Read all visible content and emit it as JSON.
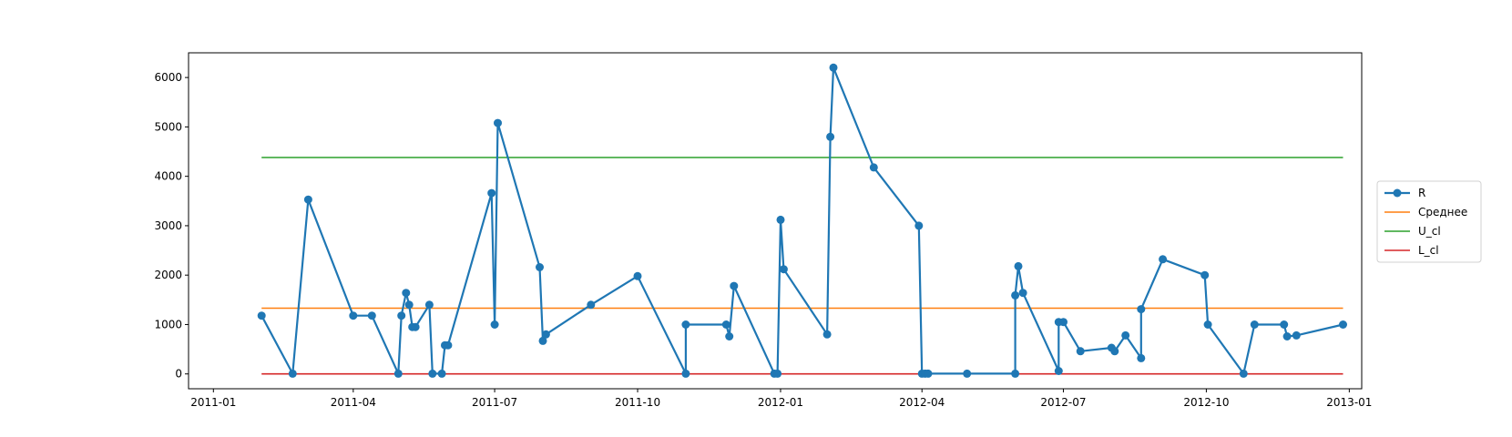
{
  "chart_data": {
    "type": "line",
    "title": "",
    "xlabel": "",
    "ylabel": "",
    "x_ticks": [
      "2011-01",
      "2011-04",
      "2011-07",
      "2011-10",
      "2012-01",
      "2012-04",
      "2012-07",
      "2012-10",
      "2013-01"
    ],
    "y_ticks": [
      "0",
      "1000",
      "2000",
      "3000",
      "4000",
      "5000",
      "6000"
    ],
    "xlim": [
      "2010-12-16",
      "2013-01-09"
    ],
    "ylim": [
      -300,
      6500
    ],
    "grid": false,
    "legend_placement": "right-center, outside plot",
    "series": [
      {
        "name": "R",
        "color": "#1f77b4",
        "marker": "circle",
        "points": [
          [
            "2011-02-01",
            1180
          ],
          [
            "2011-02-21",
            5
          ],
          [
            "2011-03-03",
            3530
          ],
          [
            "2011-04-01",
            1180
          ],
          [
            "2011-04-13",
            1180
          ],
          [
            "2011-04-30",
            5
          ],
          [
            "2011-05-02",
            1180
          ],
          [
            "2011-05-05",
            1640
          ],
          [
            "2011-05-07",
            1400
          ],
          [
            "2011-05-09",
            950
          ],
          [
            "2011-05-11",
            950
          ],
          [
            "2011-05-20",
            1400
          ],
          [
            "2011-05-22",
            5
          ],
          [
            "2011-05-28",
            5
          ],
          [
            "2011-05-30",
            580
          ],
          [
            "2011-06-01",
            580
          ],
          [
            "2011-06-29",
            3660
          ],
          [
            "2011-07-01",
            1000
          ],
          [
            "2011-07-03",
            5080
          ],
          [
            "2011-07-30",
            2160
          ],
          [
            "2011-08-01",
            670
          ],
          [
            "2011-08-03",
            800
          ],
          [
            "2011-09-01",
            1400
          ],
          [
            "2011-10-01",
            1980
          ],
          [
            "2011-11-01",
            5
          ],
          [
            "2011-11-01",
            1000
          ],
          [
            "2011-11-27",
            1000
          ],
          [
            "2011-11-29",
            760
          ],
          [
            "2011-12-02",
            1780
          ],
          [
            "2011-12-28",
            5
          ],
          [
            "2011-12-30",
            5
          ],
          [
            "2012-01-01",
            3120
          ],
          [
            "2012-01-03",
            2120
          ],
          [
            "2012-01-31",
            800
          ],
          [
            "2012-02-02",
            4800
          ],
          [
            "2012-02-04",
            6200
          ],
          [
            "2012-03-01",
            4180
          ],
          [
            "2012-03-30",
            3000
          ],
          [
            "2012-04-01",
            5
          ],
          [
            "2012-04-03",
            5
          ],
          [
            "2012-04-05",
            5
          ],
          [
            "2012-04-30",
            5
          ],
          [
            "2012-05-31",
            5
          ],
          [
            "2012-05-31",
            1590
          ],
          [
            "2012-06-02",
            2180
          ],
          [
            "2012-06-05",
            1640
          ],
          [
            "2012-06-28",
            60
          ],
          [
            "2012-06-28",
            1050
          ],
          [
            "2012-07-01",
            1050
          ],
          [
            "2012-07-12",
            460
          ],
          [
            "2012-08-01",
            530
          ],
          [
            "2012-08-03",
            460
          ],
          [
            "2012-08-10",
            780
          ],
          [
            "2012-08-20",
            320
          ],
          [
            "2012-08-20",
            1310
          ],
          [
            "2012-09-03",
            2320
          ],
          [
            "2012-09-30",
            2000
          ],
          [
            "2012-10-02",
            1000
          ],
          [
            "2012-10-25",
            5
          ],
          [
            "2012-11-01",
            1000
          ],
          [
            "2012-11-20",
            1000
          ],
          [
            "2012-11-22",
            760
          ],
          [
            "2012-11-28",
            780
          ],
          [
            "2012-12-28",
            1000
          ]
        ]
      },
      {
        "name": "Среднее",
        "color": "#ff7f0e",
        "x": [
          "2011-02-01",
          "2012-12-28"
        ],
        "values": [
          1330,
          1330
        ]
      },
      {
        "name": "U_cl",
        "color": "#2ca02c",
        "x": [
          "2011-02-01",
          "2012-12-28"
        ],
        "values": [
          4380,
          4380
        ]
      },
      {
        "name": "L_cl",
        "color": "#d62728",
        "x": [
          "2011-02-01",
          "2012-12-28"
        ],
        "values": [
          0,
          0
        ]
      }
    ]
  }
}
